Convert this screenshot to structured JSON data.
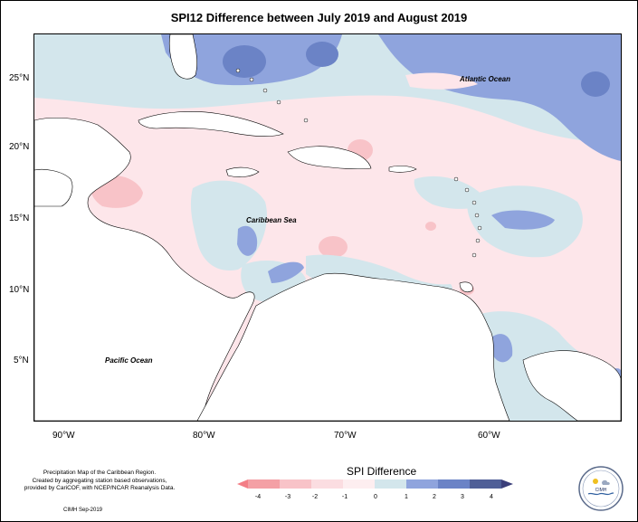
{
  "title": "SPI12 Difference between July 2019 and August 2019",
  "map_labels": {
    "atlantic": "Atlantic Ocean",
    "caribbean": "Caribbean Sea",
    "pacific": "Pacific Ocean"
  },
  "lat_ticks": [
    "25°N",
    "20°N",
    "15°N",
    "10°N",
    "5°N"
  ],
  "lon_ticks": [
    "90°W",
    "80°W",
    "70°W",
    "60°W"
  ],
  "legend": {
    "title": "SPI Difference",
    "ticks": [
      "-4",
      "-3",
      "-2",
      "-1",
      "0",
      "1",
      "2",
      "3",
      "4"
    ],
    "colors": [
      "#f4a0a5",
      "#f8c3c8",
      "#fbdde1",
      "#fdeef0",
      "#d3e6ec",
      "#8fa4dd",
      "#6b83c6",
      "#4f5f97"
    ]
  },
  "credit": {
    "line1": "Precipitation Map of the Caribbean Region.",
    "line2": "Created by aggregating station based observations,",
    "line3": "provided by CariCOF, with NCEP/NCAR Reanalysis Data."
  },
  "date_stamp": "CIMH Sep-2019",
  "logo_text": "CIMH"
}
